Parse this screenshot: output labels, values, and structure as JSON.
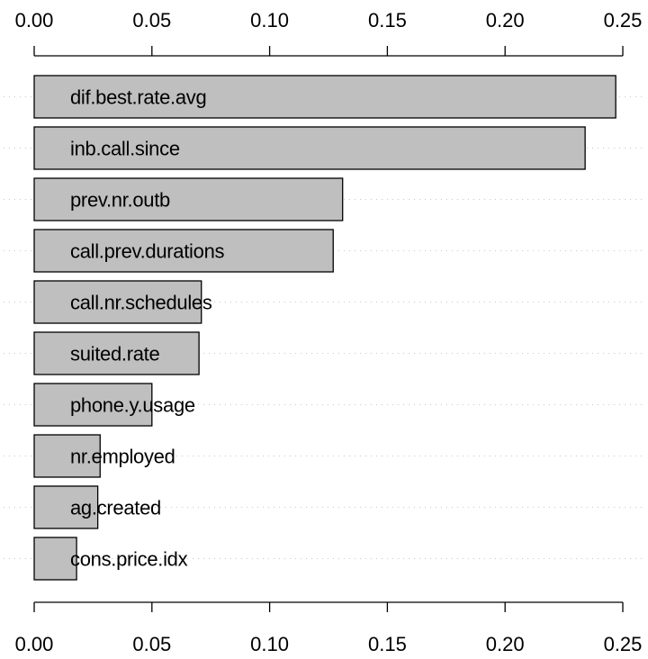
{
  "chart_data": {
    "type": "bar",
    "orientation": "horizontal",
    "title": "",
    "xlabel": "",
    "ylabel": "",
    "xlim": [
      0,
      0.25
    ],
    "x_ticks": [
      0.0,
      0.05,
      0.1,
      0.15,
      0.2,
      0.25
    ],
    "x_tick_labels": [
      "0.00",
      "0.05",
      "0.10",
      "0.15",
      "0.20",
      "0.25"
    ],
    "axes": [
      "top",
      "bottom"
    ],
    "grid": "horizontal dotted",
    "categories": [
      "dif.best.rate.avg",
      "inb.call.since",
      "prev.nr.outb",
      "call.prev.durations",
      "call.nr.schedules",
      "suited.rate",
      "phone.y.usage",
      "nr.employed",
      "ag.created",
      "cons.price.idx"
    ],
    "values": [
      0.247,
      0.234,
      0.131,
      0.127,
      0.071,
      0.07,
      0.05,
      0.028,
      0.027,
      0.018
    ],
    "bar_color": "#bfbfbf",
    "bar_edge_color": "#000000",
    "label_placement": "inside-left"
  }
}
